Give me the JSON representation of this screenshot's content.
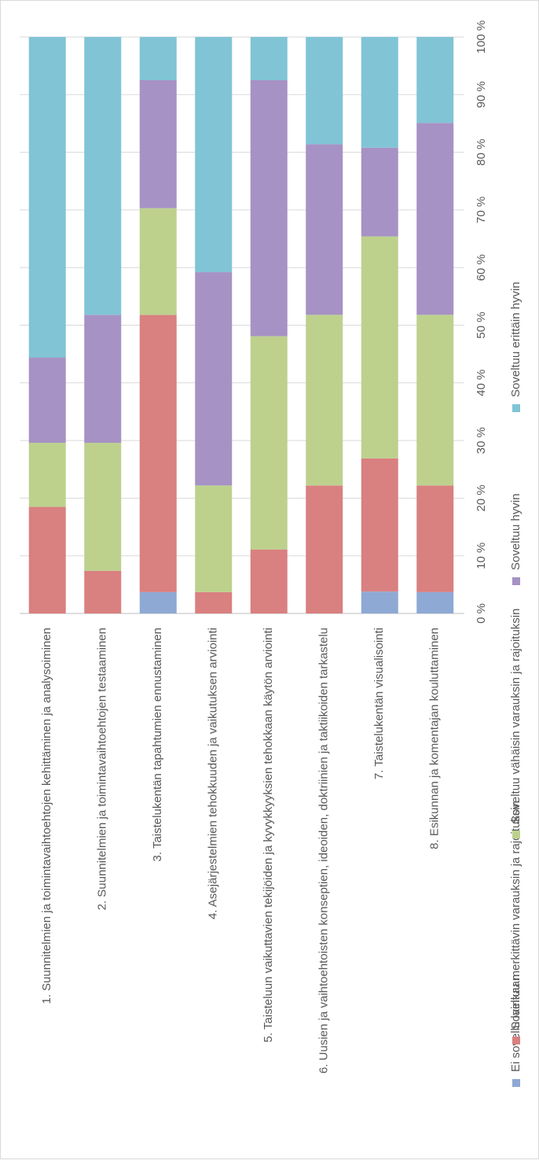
{
  "chart_data": {
    "type": "bar",
    "orientation": "stacked-100-percent",
    "title": "",
    "xlabel": "",
    "ylabel": "",
    "ylim": [
      0,
      100
    ],
    "y_ticks": [
      "0 %",
      "10 %",
      "20 %",
      "30 %",
      "40 %",
      "50 %",
      "60 %",
      "70 %",
      "80 %",
      "90 %",
      "100 %"
    ],
    "legend_position": "bottom",
    "grid": true,
    "categories": [
      "1. Suunnitelmien ja toimintavaihtoehtojen kehittäminen ja analysoiminen",
      "2. Suunnitelmien ja toimintavaihtoehtojen testaaminen",
      "3. Taistelukentän tapahtumien ennustaminen",
      "4. Asejärjestelmien tehokkuuden ja vaikutuksen arviointi",
      "5. Taisteluun vaikuttavien tekijöiden ja kyvykkyyksien tehokkaan käytön arviointi",
      "6. Uusien ja vaihtoehtoisten konseptien, ideoiden, doktriinien ja taktiikoiden tarkastelu",
      "7. Taistelukentän visualisointi",
      "8. Esikunnan ja komentajan kouluttaminen"
    ],
    "series": [
      {
        "name": "Ei sovellu lainkaan",
        "color": "#8EA9D4",
        "values": [
          0,
          0,
          3.7,
          0,
          0,
          0,
          3.8,
          3.7
        ]
      },
      {
        "name": "Soveltuu merkittävin varauksin ja rajoituksin",
        "color": "#D98080",
        "values": [
          18.5,
          7.4,
          48.1,
          3.7,
          11.1,
          22.2,
          23.1,
          18.5
        ]
      },
      {
        "name": "Soveltuu vähäisin varauksin ja rajoituksin",
        "color": "#BDD18D",
        "values": [
          11.1,
          22.2,
          18.5,
          18.5,
          37.0,
          29.6,
          38.5,
          29.6
        ]
      },
      {
        "name": "Soveltuu hyvin",
        "color": "#A692C4",
        "values": [
          14.8,
          22.2,
          22.2,
          37.0,
          44.4,
          29.6,
          15.4,
          33.3
        ]
      },
      {
        "name": "Soveltuu erittäin hyvin",
        "color": "#80C4D6",
        "values": [
          55.6,
          48.2,
          7.5,
          40.8,
          7.5,
          18.6,
          19.2,
          14.9
        ]
      }
    ]
  }
}
